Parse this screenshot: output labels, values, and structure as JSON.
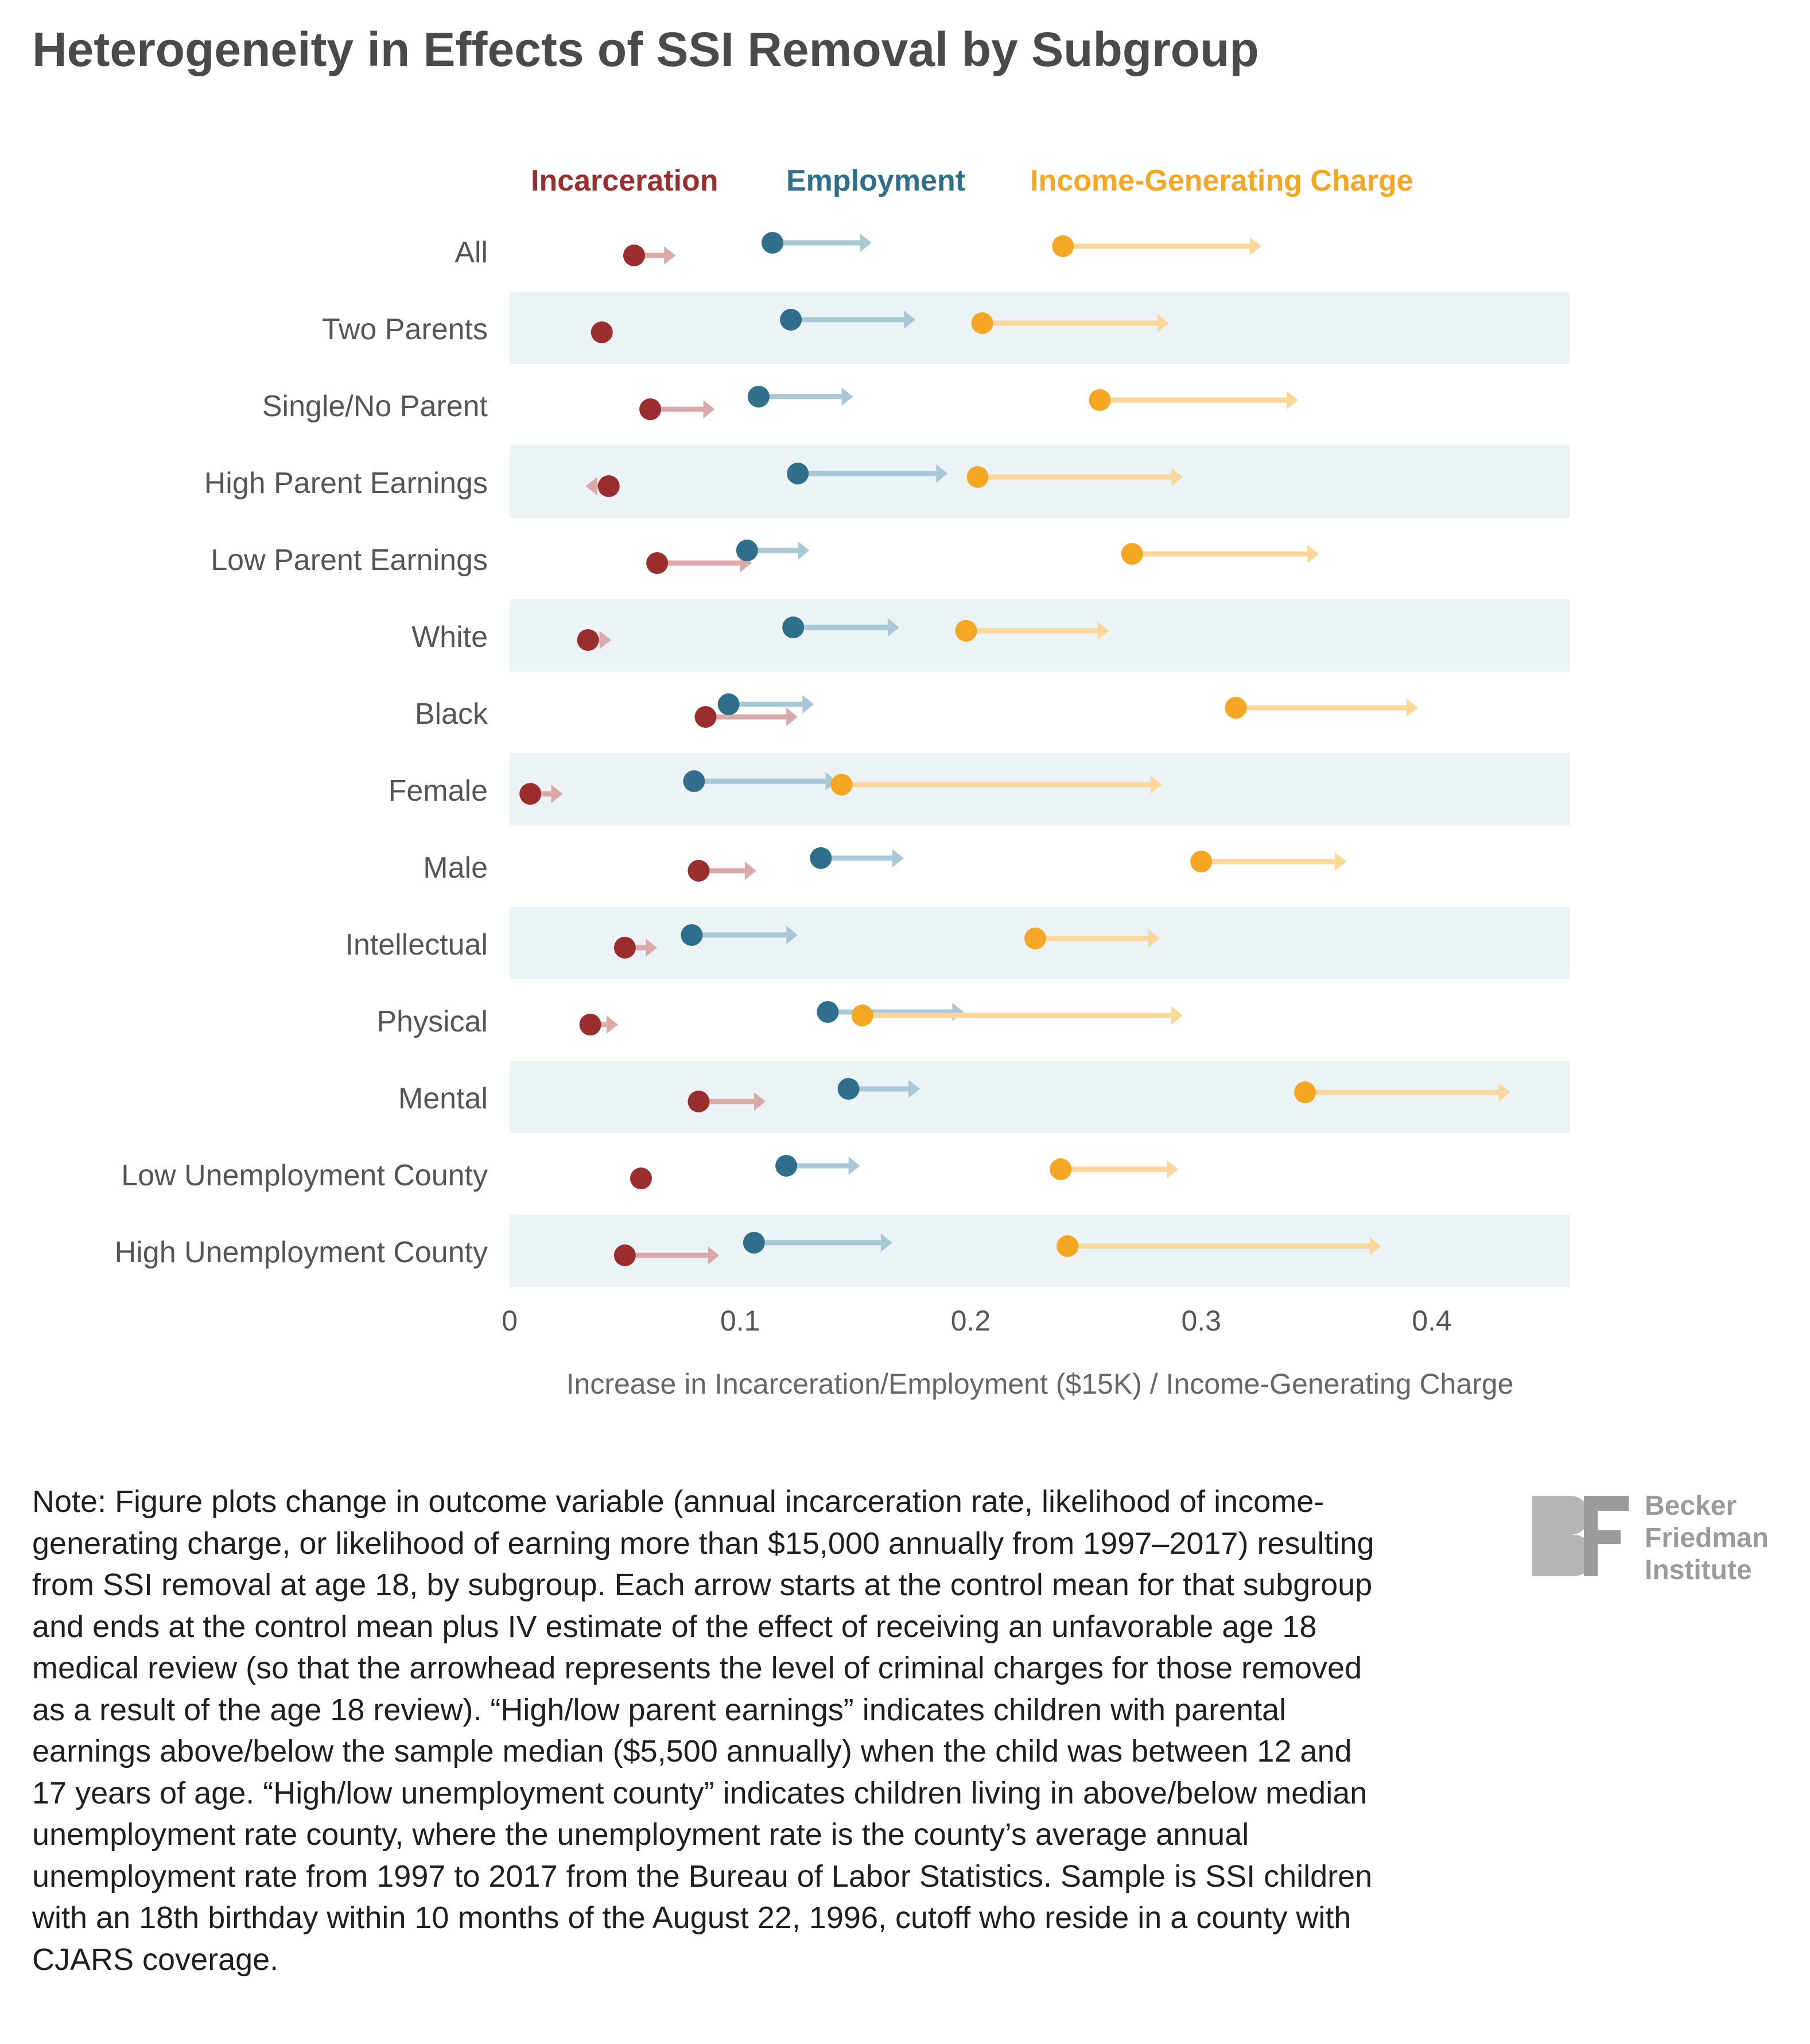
{
  "title": "Heterogeneity in Effects of SSI Removal by Subgroup",
  "chart_data": {
    "type": "arrow-dot",
    "title": "Heterogeneity in Effects of SSI Removal by Subgroup",
    "xlabel": "Increase in Incarceration/Employment ($15K) / Income-Generating Charge",
    "ylabel": "",
    "xlim": [
      0,
      0.46
    ],
    "xticks": [
      {
        "value": 0,
        "label": "0"
      },
      {
        "value": 0.1,
        "label": "0.1"
      },
      {
        "value": 0.2,
        "label": "0.2"
      },
      {
        "value": 0.3,
        "label": "0.3"
      },
      {
        "value": 0.4,
        "label": "0.4"
      }
    ],
    "legend_position": "top",
    "categories": [
      "All",
      "Two Parents",
      "Single/No Parent",
      "High Parent Earnings",
      "Low Parent Earnings",
      "White",
      "Black",
      "Female",
      "Male",
      "Intellectual",
      "Physical",
      "Mental",
      "Low Unemployment County",
      "High Unemployment County"
    ],
    "series": [
      {
        "name": "Incarceration",
        "color": "#9a2e2e",
        "arrow_color": "#d9aaa8",
        "start": [
          0.054,
          0.04,
          0.061,
          0.043,
          0.064,
          0.034,
          0.085,
          0.009,
          0.082,
          0.05,
          0.035,
          0.082,
          0.057,
          0.05
        ],
        "end": [
          0.072,
          0.04,
          0.089,
          0.033,
          0.105,
          0.044,
          0.125,
          0.023,
          0.107,
          0.064,
          0.047,
          0.111,
          0.057,
          0.091
        ]
      },
      {
        "name": "Employment",
        "color": "#2f6f8c",
        "arrow_color": "#a7c8d4",
        "start": [
          0.114,
          0.122,
          0.108,
          0.125,
          0.103,
          0.123,
          0.095,
          0.08,
          0.135,
          0.079,
          0.138,
          0.147,
          0.12,
          0.106
        ],
        "end": [
          0.157,
          0.176,
          0.149,
          0.19,
          0.13,
          0.169,
          0.132,
          0.142,
          0.171,
          0.125,
          0.197,
          0.178,
          0.152,
          0.166
        ]
      },
      {
        "name": "Income-Generating Charge",
        "color": "#f5a623",
        "arrow_color": "#fbd89a",
        "start": [
          0.24,
          0.205,
          0.256,
          0.203,
          0.27,
          0.198,
          0.315,
          0.144,
          0.3,
          0.228,
          0.153,
          0.345,
          0.239,
          0.242
        ],
        "end": [
          0.326,
          0.286,
          0.342,
          0.292,
          0.351,
          0.26,
          0.394,
          0.283,
          0.363,
          0.282,
          0.292,
          0.434,
          0.29,
          0.378
        ]
      }
    ]
  },
  "note": "Note: Figure plots change in outcome variable (annual incarceration rate, likelihood of income-generating charge, or likelihood of earning more than $15,000 annually from 1997–2017) resulting from SSI removal at age 18, by subgroup. Each arrow starts at the control mean for that subgroup and ends at the control mean plus IV estimate of the effect of receiving an unfavorable age 18 medical review (so that the arrowhead represents the level of criminal charges for those removed as a result of the age 18 review). “High/low parent earnings” indicates children with parental earnings above/below the sample median ($5,500 annually) when the child was between 12 and 17 years of age. “High/low unemployment county” indicates children living in above/below median unemployment rate county, where the unemployment rate is the county’s average annual unemployment rate from 1997 to 2017 from the Bureau of Labor Statistics. Sample is SSI children with an 18th birthday within 10 months of the August 22, 1996, cutoff who reside in a county with CJARS coverage.",
  "logo": {
    "mark": "BF",
    "line1": "Becker",
    "line2": "Friedman",
    "line3": "Institute",
    "color": "#9b9b9b"
  }
}
